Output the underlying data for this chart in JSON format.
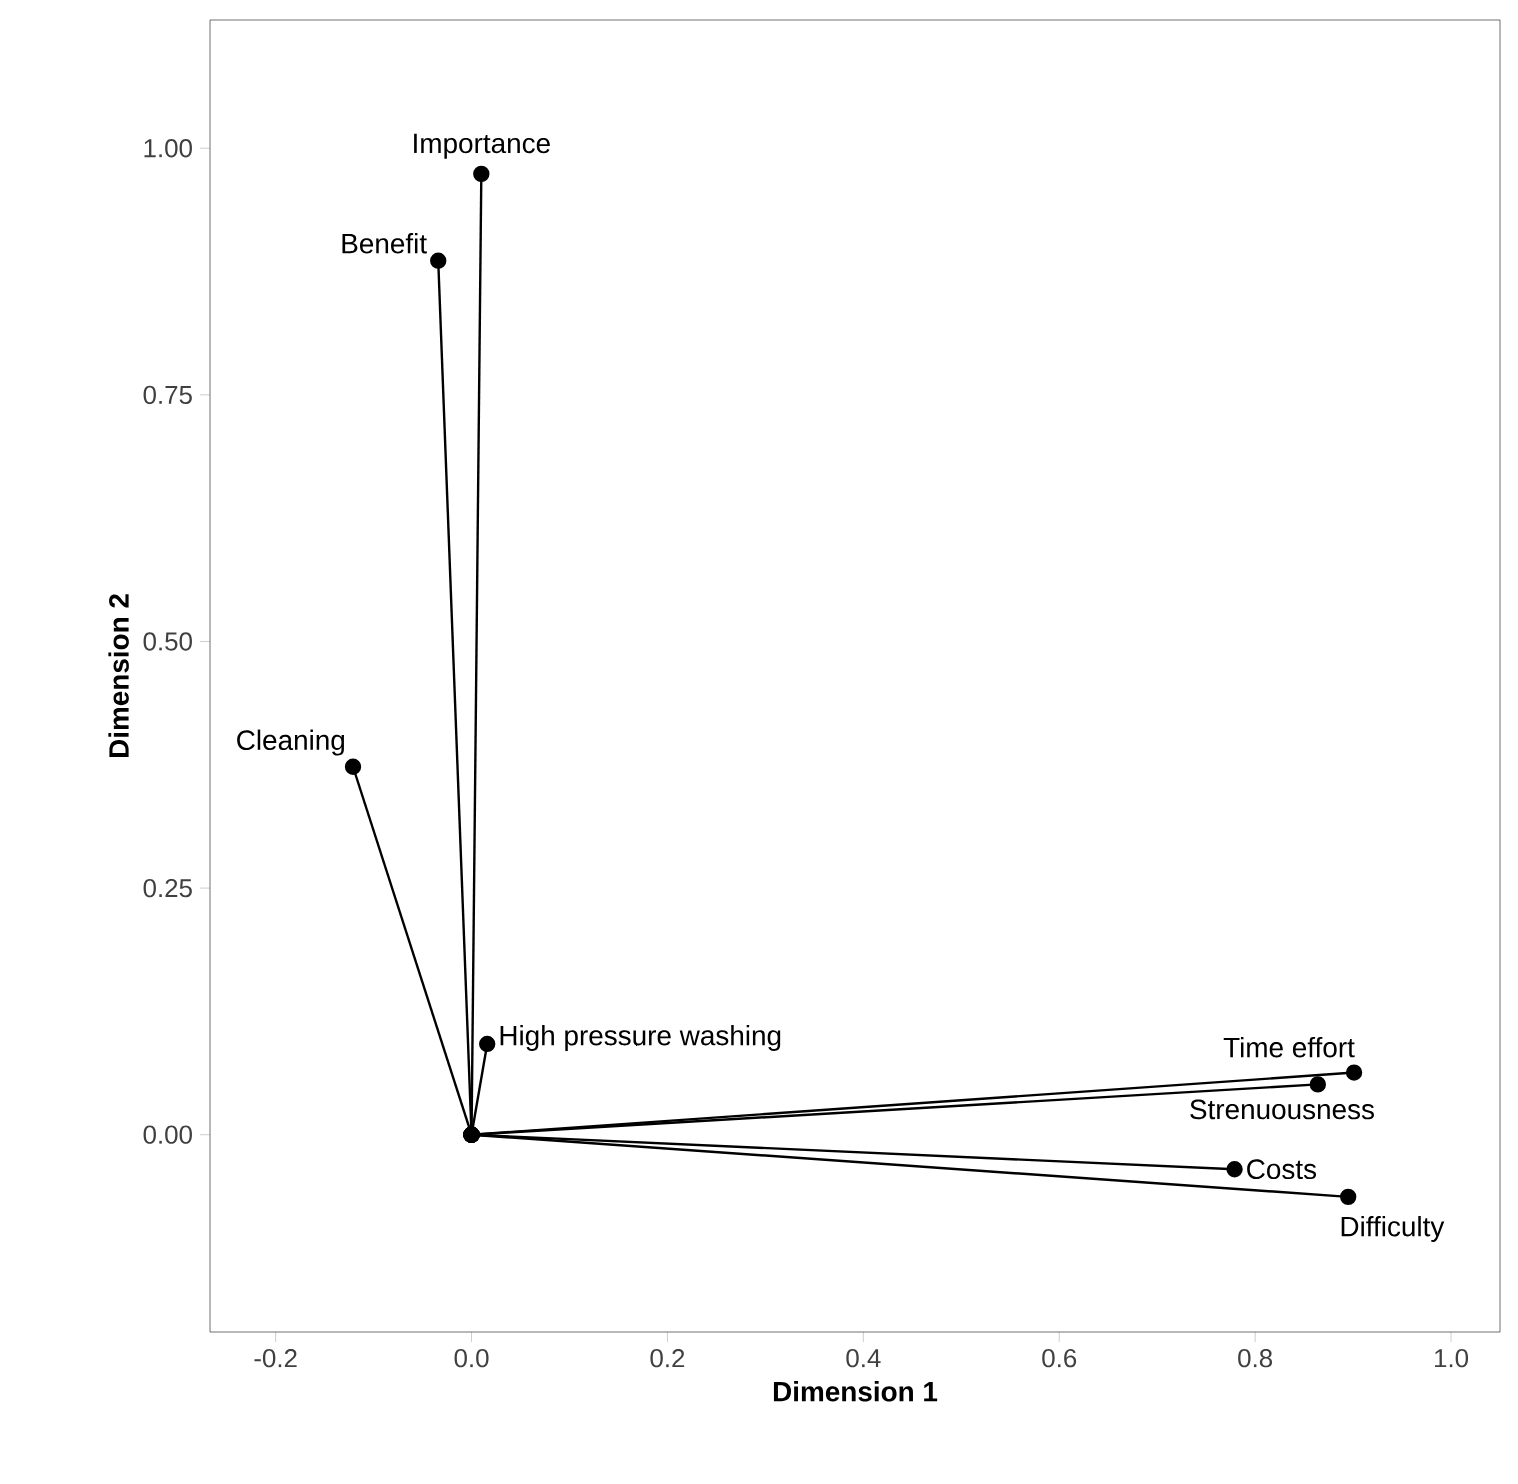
{
  "chart_data": {
    "type": "line",
    "xlabel": "Dimension 1",
    "ylabel": "Dimension 2",
    "xlim": [
      -0.267,
      1.05
    ],
    "ylim": [
      -0.2,
      1.13
    ],
    "xticks": [
      {
        "value": -0.2,
        "label": "-0.2"
      },
      {
        "value": 0,
        "label": "0.0"
      },
      {
        "value": 0.2,
        "label": "0.2"
      },
      {
        "value": 0.4,
        "label": "0.4"
      },
      {
        "value": 0.6,
        "label": "0.6"
      },
      {
        "value": 0.8,
        "label": "0.8"
      },
      {
        "value": 1.0,
        "label": "1.0"
      }
    ],
    "yticks": [
      {
        "value": 0,
        "label": "0.00"
      },
      {
        "value": 0.25,
        "label": "0.25"
      },
      {
        "value": 0.5,
        "label": "0.50"
      },
      {
        "value": 0.75,
        "label": "0.75"
      },
      {
        "value": 1.0,
        "label": "1.00"
      }
    ],
    "grid": false,
    "marker": "circle",
    "line_style": "solid",
    "series": [
      {
        "name": "Importance",
        "color": "#000000",
        "x": [
          0,
          0.01
        ],
        "values": [
          0,
          0.974
        ]
      },
      {
        "name": "Benefit",
        "color": "#000000",
        "x": [
          0,
          -0.034
        ],
        "values": [
          0,
          0.886
        ]
      },
      {
        "name": "Cleaning",
        "color": "#000000",
        "x": [
          0,
          -0.121
        ],
        "values": [
          0,
          0.373
        ]
      },
      {
        "name": "High pressure washing",
        "color": "#000000",
        "x": [
          0,
          0.016
        ],
        "values": [
          0,
          0.092
        ]
      },
      {
        "name": "Time effort",
        "color": "#000000",
        "x": [
          0,
          0.901
        ],
        "values": [
          0,
          0.063
        ]
      },
      {
        "name": "Strenuousness",
        "color": "#000000",
        "x": [
          0,
          0.864
        ],
        "values": [
          0,
          0.051
        ]
      },
      {
        "name": "Costs",
        "color": "#000000",
        "x": [
          0,
          0.779
        ],
        "values": [
          0,
          -0.035
        ]
      },
      {
        "name": "Difficulty",
        "color": "#000000",
        "x": [
          0,
          0.895
        ],
        "values": [
          0,
          -0.063
        ]
      }
    ]
  }
}
